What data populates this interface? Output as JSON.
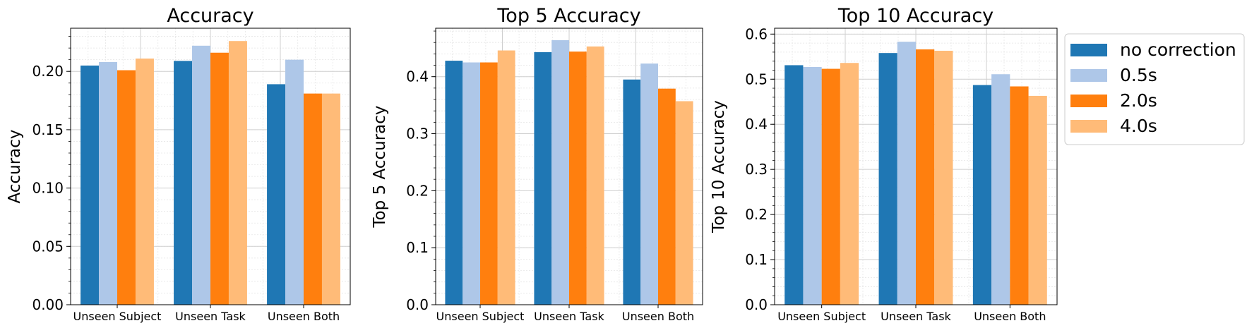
{
  "chart_data": [
    {
      "type": "bar",
      "title": "Accuracy",
      "ylabel": "Accuracy",
      "xlabel": "",
      "categories": [
        "Unseen Subject",
        "Unseen Task",
        "Unseen Both"
      ],
      "ylim": [
        0,
        0.237
      ],
      "yticks": [
        "0.00",
        "0.05",
        "0.10",
        "0.15",
        "0.20"
      ],
      "ytick_values": [
        0,
        0.05,
        0.1,
        0.15,
        0.2
      ],
      "minor_step": 0.01,
      "grid": true,
      "series": [
        {
          "name": "no correction",
          "values": [
            0.205,
            0.209,
            0.189
          ]
        },
        {
          "name": "0.5s",
          "values": [
            0.208,
            0.222,
            0.21
          ]
        },
        {
          "name": "2.0s",
          "values": [
            0.201,
            0.216,
            0.181
          ]
        },
        {
          "name": "4.0s",
          "values": [
            0.211,
            0.226,
            0.181
          ]
        }
      ]
    },
    {
      "type": "bar",
      "title": "Top 5 Accuracy",
      "ylabel": "Top 5 Accuracy",
      "xlabel": "",
      "categories": [
        "Unseen Subject",
        "Unseen Task",
        "Unseen Both"
      ],
      "ylim": [
        0,
        0.485
      ],
      "yticks": [
        "0.0",
        "0.1",
        "0.2",
        "0.3",
        "0.4"
      ],
      "ytick_values": [
        0,
        0.1,
        0.2,
        0.3,
        0.4
      ],
      "minor_step": 0.02,
      "grid": true,
      "series": [
        {
          "name": "no correction",
          "values": [
            0.428,
            0.443,
            0.395
          ]
        },
        {
          "name": "0.5s",
          "values": [
            0.425,
            0.464,
            0.423
          ]
        },
        {
          "name": "2.0s",
          "values": [
            0.425,
            0.444,
            0.379
          ]
        },
        {
          "name": "4.0s",
          "values": [
            0.446,
            0.453,
            0.357
          ]
        }
      ]
    },
    {
      "type": "bar",
      "title": "Top 10 Accuracy",
      "ylabel": "Top 10 Accuracy",
      "xlabel": "",
      "categories": [
        "Unseen Subject",
        "Unseen Task",
        "Unseen Both"
      ],
      "ylim": [
        0,
        0.613
      ],
      "yticks": [
        "0.0",
        "0.1",
        "0.2",
        "0.3",
        "0.4",
        "0.5",
        "0.6"
      ],
      "ytick_values": [
        0,
        0.1,
        0.2,
        0.3,
        0.4,
        0.5,
        0.6
      ],
      "minor_step": 0.02,
      "grid": true,
      "series": [
        {
          "name": "no correction",
          "values": [
            0.531,
            0.558,
            0.487
          ]
        },
        {
          "name": "0.5s",
          "values": [
            0.527,
            0.583,
            0.511
          ]
        },
        {
          "name": "2.0s",
          "values": [
            0.523,
            0.566,
            0.484
          ]
        },
        {
          "name": "4.0s",
          "values": [
            0.536,
            0.563,
            0.463
          ]
        }
      ]
    }
  ],
  "legend": {
    "placement": "outside-right",
    "entries": [
      {
        "label": "no correction",
        "color": "#1f77b4"
      },
      {
        "label": "0.5s",
        "color": "#aec7e8"
      },
      {
        "label": "2.0s",
        "color": "#ff7f0e"
      },
      {
        "label": "4.0s",
        "color": "#ffbb78"
      }
    ]
  }
}
